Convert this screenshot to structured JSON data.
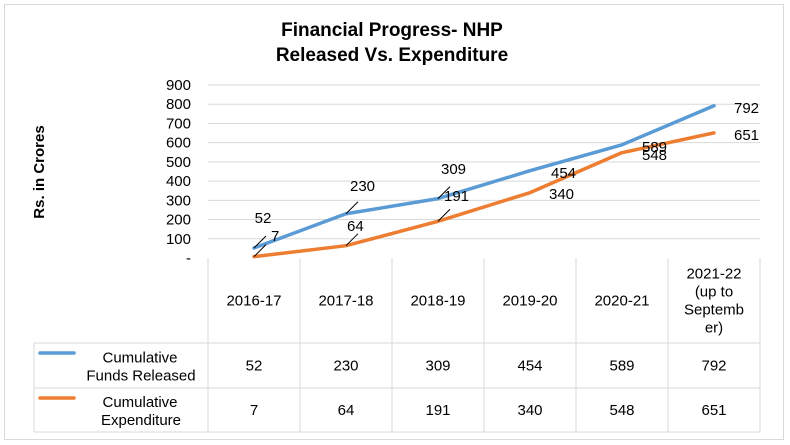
{
  "chart_data": {
    "type": "line",
    "title": [
      "Financial Progress- NHP",
      "Released Vs. Expenditure"
    ],
    "ylabel": "Rs. in Crores",
    "xlabel": "",
    "ylim": [
      0,
      900
    ],
    "yticks": [
      {
        "value": 0,
        "label": "-"
      },
      {
        "value": 100,
        "label": "100"
      },
      {
        "value": 200,
        "label": "200"
      },
      {
        "value": 300,
        "label": "300"
      },
      {
        "value": 400,
        "label": "400"
      },
      {
        "value": 500,
        "label": "500"
      },
      {
        "value": 600,
        "label": "600"
      },
      {
        "value": 700,
        "label": "700"
      },
      {
        "value": 800,
        "label": "800"
      },
      {
        "value": 900,
        "label": "900"
      }
    ],
    "grid": true,
    "legend": "data-table",
    "categories": [
      [
        "2016-17"
      ],
      [
        "2017-18"
      ],
      [
        "2018-19"
      ],
      [
        "2019-20"
      ],
      [
        "2020-21"
      ],
      [
        "2021-22",
        "(up to",
        "Septemb",
        "er)"
      ]
    ],
    "series": [
      {
        "name": [
          "Cumulative",
          "Funds Released"
        ],
        "color": "#5b9bd5",
        "values": [
          52,
          230,
          309,
          454,
          589,
          792
        ]
      },
      {
        "name": [
          "Cumulative",
          "Expenditure"
        ],
        "color": "#ed7d31",
        "values": [
          7,
          64,
          191,
          340,
          548,
          651
        ]
      }
    ]
  }
}
